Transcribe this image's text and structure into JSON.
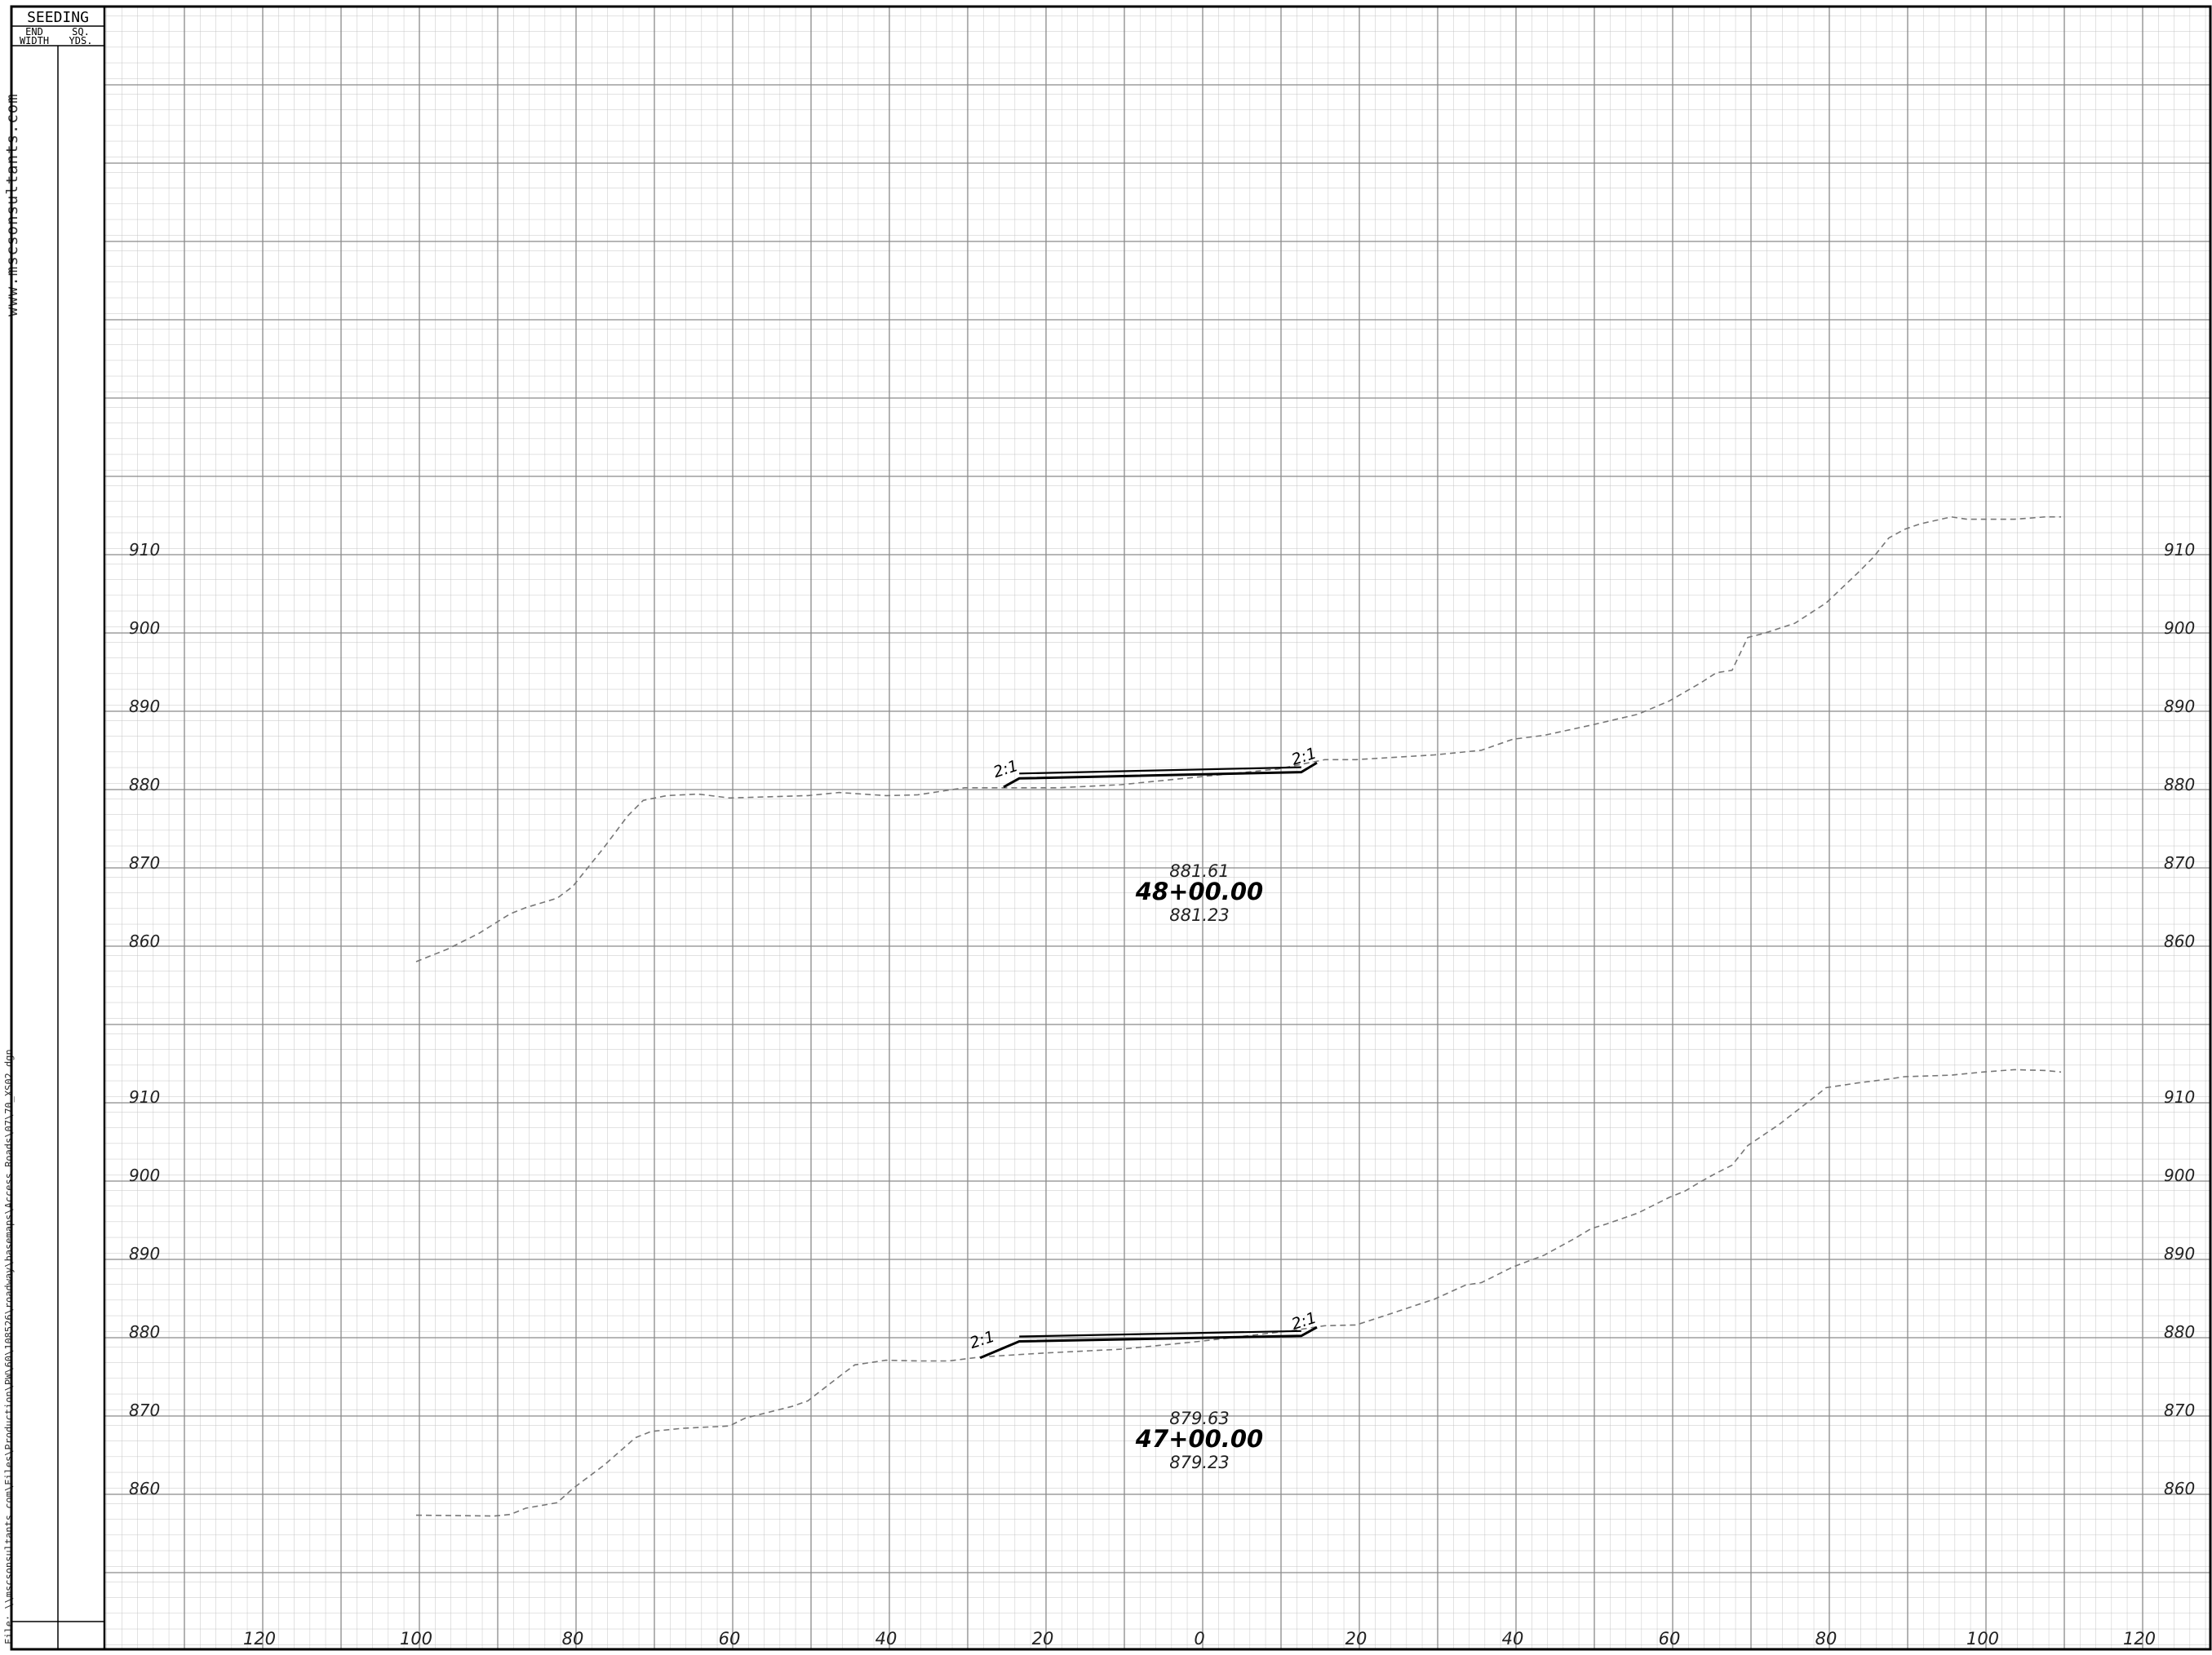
{
  "side_notes": {
    "website": "www.mscsonsultants.com",
    "file_path": "File: \\\\mscsonsultants.com\\Files\\Production\\PW\\60\\108526\\roadway\\basemaps\\Access Roads\\07\\70_XS02.dgn"
  },
  "seeding_table": {
    "title": "SEEDING",
    "columns": [
      {
        "line1": "END",
        "line2": "WIDTH"
      },
      {
        "line1": "SQ.",
        "line2": "YDS."
      }
    ]
  },
  "bottom_axis": {
    "labels": [
      "120",
      "100",
      "80",
      "60",
      "40",
      "20",
      "0",
      "20",
      "40",
      "60",
      "80",
      "100",
      "120"
    ]
  },
  "chart_data": [
    {
      "type": "line",
      "station": "48+00.00",
      "elev_top": "881.61",
      "elev_bottom": "881.23",
      "slope_label_left": "2:1",
      "slope_label_right": "2:1",
      "elevation_labels": [
        "910",
        "900",
        "890",
        "880",
        "870",
        "860"
      ],
      "ylim": [
        850,
        915
      ],
      "xlim": [
        -140,
        130
      ],
      "series": [
        {
          "role": "existing-ground",
          "points": [
            [
              -100,
              857.4
            ],
            [
              -96,
              859
            ],
            [
              -92,
              861
            ],
            [
              -88,
              863.5
            ],
            [
              -86,
              864.3
            ],
            [
              -82,
              865.5
            ],
            [
              -80,
              867
            ],
            [
              -76,
              872
            ],
            [
              -73,
              876
            ],
            [
              -71,
              878
            ],
            [
              -68,
              878.6
            ],
            [
              -64,
              878.8
            ],
            [
              -60,
              878.3
            ],
            [
              -50,
              878.6
            ],
            [
              -46,
              879
            ],
            [
              -40,
              878.6
            ],
            [
              -36,
              878.7
            ],
            [
              -30,
              879.6
            ],
            [
              -24,
              879.6
            ],
            [
              -18,
              879.6
            ],
            [
              -10,
              880
            ],
            [
              0,
              881
            ],
            [
              10,
              882
            ],
            [
              16,
              883.2
            ],
            [
              20,
              883.2
            ],
            [
              30,
              883.8
            ],
            [
              36,
              884.4
            ],
            [
              40,
              885.8
            ],
            [
              44,
              886.3
            ],
            [
              50,
              887.6
            ],
            [
              56,
              889
            ],
            [
              60,
              890.7
            ],
            [
              64,
              893
            ],
            [
              66,
              894.3
            ],
            [
              68,
              894.6
            ],
            [
              70,
              898.8
            ],
            [
              72,
              899.3
            ],
            [
              76,
              900.6
            ],
            [
              80,
              903.2
            ],
            [
              84,
              907
            ],
            [
              86,
              909
            ],
            [
              88,
              911.5
            ],
            [
              90,
              912.6
            ],
            [
              92,
              913.3
            ],
            [
              96,
              914.2
            ],
            [
              98,
              913.9
            ],
            [
              104,
              913.9
            ],
            [
              108,
              914.2
            ],
            [
              110,
              914.2
            ]
          ]
        },
        {
          "role": "proposed-section",
          "points": [
            [
              -25,
              879.7
            ],
            [
              -23,
              880.8
            ],
            [
              13,
              881.6
            ],
            [
              15,
              882.8
            ]
          ]
        }
      ]
    },
    {
      "type": "line",
      "station": "47+00.00",
      "elev_top": "879.63",
      "elev_bottom": "879.23",
      "slope_label_left": "2:1",
      "slope_label_right": "2:1",
      "elevation_labels": [
        "910",
        "900",
        "890",
        "880",
        "870",
        "860"
      ],
      "ylim": [
        850,
        915
      ],
      "xlim": [
        -140,
        130
      ],
      "series": [
        {
          "role": "existing-ground",
          "points": [
            [
              -100,
              856.6
            ],
            [
              -90,
              856.5
            ],
            [
              -88,
              856.7
            ],
            [
              -86,
              857.5
            ],
            [
              -82,
              858.2
            ],
            [
              -80,
              860
            ],
            [
              -76,
              863
            ],
            [
              -72,
              866.5
            ],
            [
              -70,
              867.3
            ],
            [
              -66,
              867.7
            ],
            [
              -60,
              868
            ],
            [
              -58,
              869
            ],
            [
              -52,
              870.5
            ],
            [
              -50,
              871.2
            ],
            [
              -46,
              874.3
            ],
            [
              -44,
              875.8
            ],
            [
              -40,
              876.4
            ],
            [
              -36,
              876.3
            ],
            [
              -32,
              876.3
            ],
            [
              -28,
              876.8
            ],
            [
              -20,
              877.3
            ],
            [
              -14,
              877.6
            ],
            [
              -10,
              877.8
            ],
            [
              0,
              878.8
            ],
            [
              12,
              880.2
            ],
            [
              16,
              880.8
            ],
            [
              20,
              880.9
            ],
            [
              24,
              882.2
            ],
            [
              30,
              884.2
            ],
            [
              34,
              886
            ],
            [
              36,
              886.3
            ],
            [
              40,
              888.3
            ],
            [
              44,
              889.8
            ],
            [
              48,
              892
            ],
            [
              50,
              893.2
            ],
            [
              52,
              893.8
            ],
            [
              56,
              895.2
            ],
            [
              60,
              897.2
            ],
            [
              62,
              898
            ],
            [
              64,
              899.2
            ],
            [
              66,
              900.3
            ],
            [
              68,
              901.3
            ],
            [
              70,
              903.8
            ],
            [
              74,
              906.5
            ],
            [
              78,
              909.6
            ],
            [
              80,
              911.2
            ],
            [
              84,
              911.8
            ],
            [
              88,
              912.3
            ],
            [
              90,
              912.6
            ],
            [
              96,
              912.8
            ],
            [
              100,
              913.2
            ],
            [
              104,
              913.5
            ],
            [
              108,
              913.4
            ],
            [
              110,
              913.2
            ]
          ]
        },
        {
          "role": "proposed-section",
          "points": [
            [
              -28,
              876.7
            ],
            [
              -23,
              878.8
            ],
            [
              13,
              879.5
            ],
            [
              15,
              880.6
            ]
          ]
        }
      ]
    }
  ]
}
